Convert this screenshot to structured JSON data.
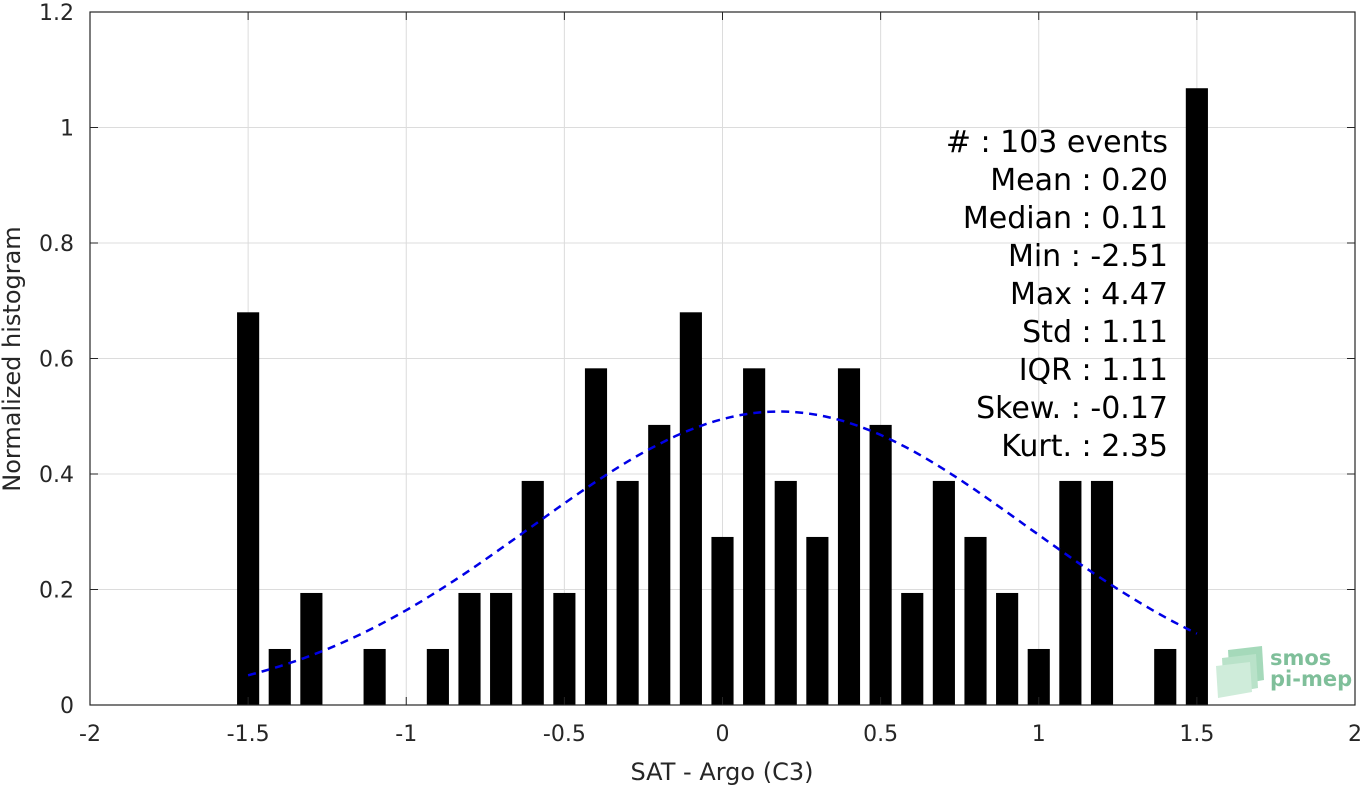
{
  "chart_data": {
    "type": "bar",
    "title": "",
    "xlabel": "SAT - Argo (C3)",
    "ylabel": "Normalized histogram",
    "xlim": [
      -2,
      2
    ],
    "ylim": [
      0,
      1.2
    ],
    "grid": true,
    "x_ticks": [
      -2,
      -1.5,
      -1,
      -0.5,
      0,
      0.5,
      1,
      1.5,
      2
    ],
    "x_tick_labels": [
      "-2",
      "-1.5",
      "-1",
      "-0.5",
      "0",
      "0.5",
      "1",
      "1.5",
      "2"
    ],
    "y_ticks": [
      0,
      0.2,
      0.4,
      0.6,
      0.8,
      1,
      1.2
    ],
    "y_tick_labels": [
      "0",
      "0.2",
      "0.4",
      "0.6",
      "0.8",
      "1",
      "1.2"
    ],
    "bar_color": "#000000",
    "bar_width": 0.07,
    "x": [
      -1.5,
      -1.4,
      -1.3,
      -1.1,
      -0.9,
      -0.8,
      -0.7,
      -0.6,
      -0.5,
      -0.4,
      -0.3,
      -0.2,
      -0.1,
      0.0,
      0.1,
      0.2,
      0.3,
      0.4,
      0.5,
      0.6,
      0.7,
      0.8,
      0.9,
      1.0,
      1.1,
      1.2,
      1.4,
      1.5
    ],
    "values": [
      0.68,
      0.097,
      0.194,
      0.097,
      0.097,
      0.194,
      0.194,
      0.388,
      0.194,
      0.583,
      0.388,
      0.485,
      0.68,
      0.291,
      0.583,
      0.388,
      0.291,
      0.583,
      0.485,
      0.194,
      0.388,
      0.291,
      0.194,
      0.097,
      0.388,
      0.388,
      0.097,
      1.068
    ],
    "fit_curve": {
      "style": "dashed",
      "color": "#0000e6",
      "mean": 0.18,
      "std": 0.785,
      "xrange": [
        -1.5,
        1.5
      ]
    },
    "annotations": [
      "#  : 103 events",
      "Mean : 0.20",
      "Median : 0.11",
      "Min : -2.51",
      "Max : 4.47",
      "Std : 1.11",
      "IQR : 1.11",
      "Skew. : -0.17",
      "Kurt. : 2.35"
    ]
  },
  "logo": {
    "line1": "smos",
    "line2": "pi-mep",
    "color": "#7fbf9a"
  }
}
